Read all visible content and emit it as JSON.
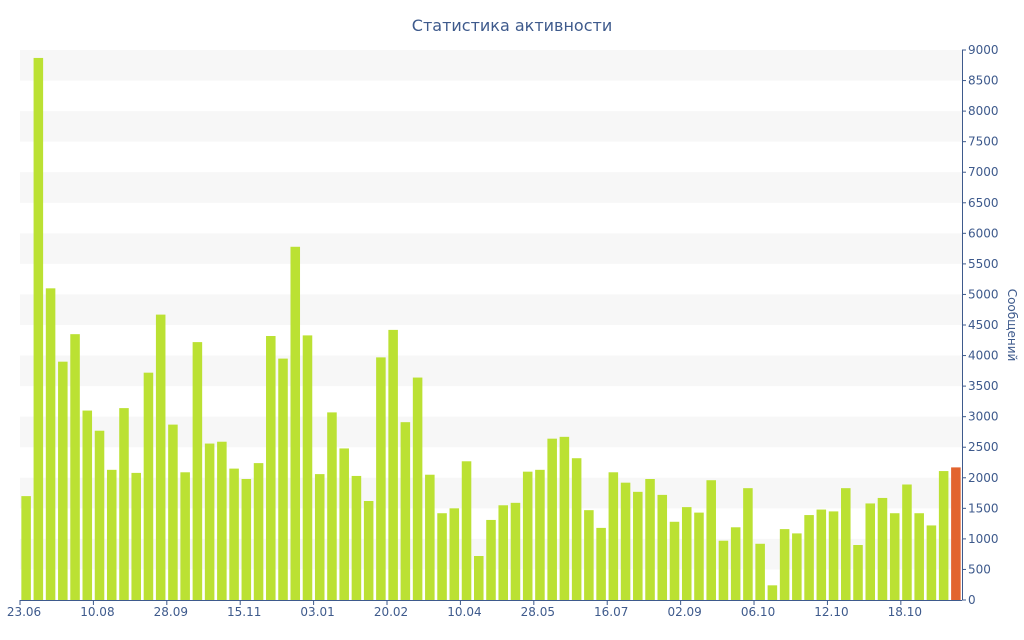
{
  "chart_data": {
    "type": "bar",
    "title": "Статистика активности",
    "ylabel": "Сообщений",
    "ylim": [
      0,
      9000
    ],
    "yticks": [
      0,
      500,
      1000,
      1500,
      2000,
      2500,
      3000,
      3500,
      4000,
      4500,
      5000,
      5500,
      6000,
      6500,
      7000,
      7500,
      8000,
      8500,
      9000
    ],
    "y_axis_position": "right",
    "grid": "alternating horizontal bands",
    "x_tick_labels": [
      "23.06",
      "10.08",
      "28.09",
      "15.11",
      "03.01",
      "20.02",
      "10.04",
      "28.05",
      "16.07",
      "02.09",
      "06.10",
      "12.10",
      "18.10"
    ],
    "x_tick_bar_index": [
      0,
      6,
      12,
      18,
      24,
      30,
      36,
      42,
      48,
      54,
      60,
      66,
      72
    ],
    "series": [
      {
        "color": "#bbe133",
        "values": [
          1700,
          8870,
          5100,
          3900,
          4350,
          3100,
          2770,
          2130,
          3140,
          2080,
          3720,
          4670,
          2870,
          2090,
          4220,
          2560,
          2590,
          2150,
          1980,
          2240,
          4320,
          3950,
          5780,
          4330,
          2060,
          3070,
          2480,
          2030,
          1620,
          3970,
          4420,
          2910,
          3640,
          2050,
          1420,
          1500,
          2270,
          720,
          1310,
          1550,
          1590,
          2100,
          2130,
          2640,
          2670,
          2320,
          1470,
          1180,
          2090,
          1920,
          1770,
          1980,
          1720,
          1280,
          1520,
          1430,
          1960,
          970,
          1190,
          1830,
          920,
          240,
          1160,
          1090,
          1390,
          1480,
          1450,
          1830,
          900,
          1580,
          1670,
          1420,
          1890,
          1420,
          1220,
          2110,
          2170
        ]
      }
    ],
    "highlight": {
      "index": 76,
      "color": "#e2642f"
    }
  }
}
